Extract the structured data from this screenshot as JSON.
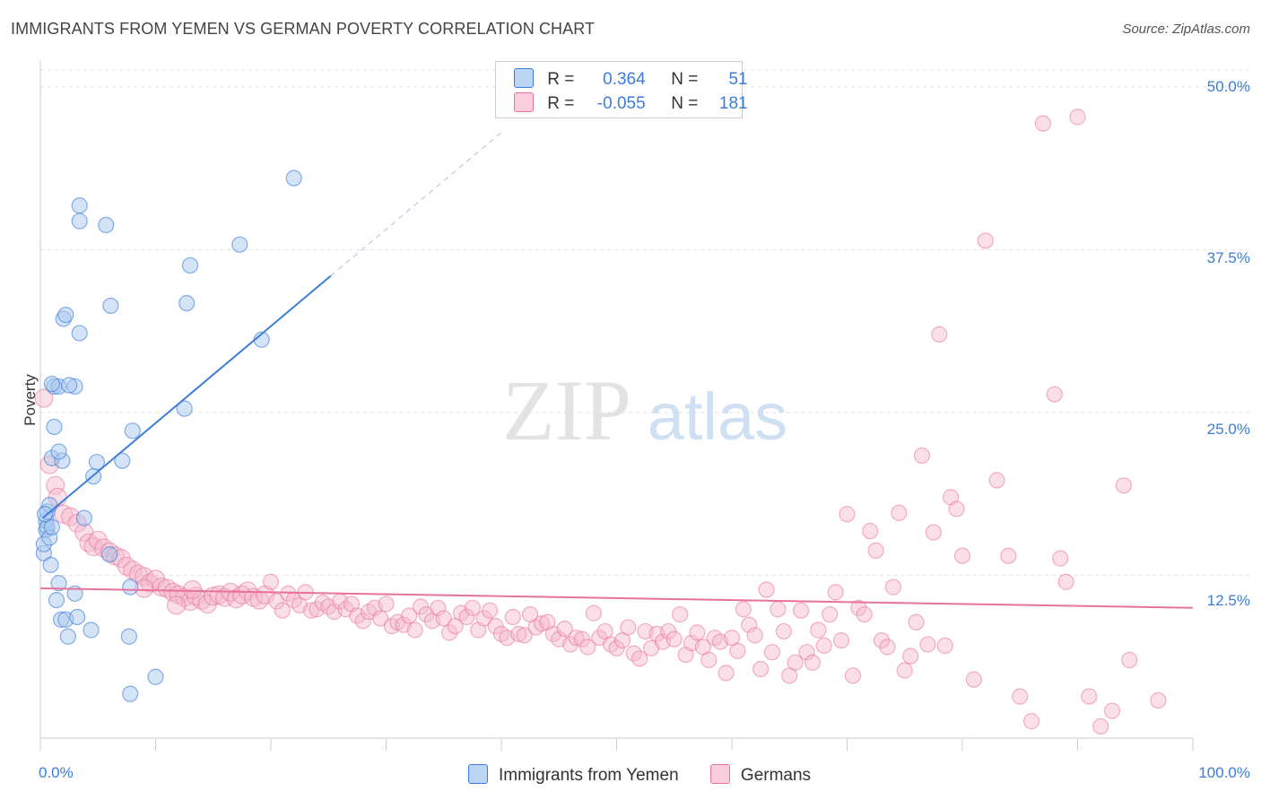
{
  "title": "IMMIGRANTS FROM YEMEN VS GERMAN POVERTY CORRELATION CHART",
  "source": "Source: ZipAtlas.com",
  "watermark": {
    "zip": "ZIP",
    "atlas": "atlas"
  },
  "colors": {
    "blue": "#3b7dd8",
    "pink": "#e8739a",
    "blue_fill": "#a9c8ee",
    "pink_fill": "#f5b8cc"
  },
  "legend_top": {
    "rows": [
      {
        "r_label": "R =",
        "r_value": "0.364",
        "n_label": "N =",
        "n_value": "51"
      },
      {
        "r_label": "R =",
        "r_value": "-0.055",
        "n_label": "N =",
        "n_value": "181"
      }
    ]
  },
  "legend_bottom": [
    {
      "label": "Immigrants from Yemen"
    },
    {
      "label": "Germans"
    }
  ],
  "chart_data": {
    "type": "scatter",
    "title": "IMMIGRANTS FROM YEMEN VS GERMAN POVERTY CORRELATION CHART",
    "xlabel": "",
    "ylabel": "Poverty",
    "xlim": [
      0,
      100
    ],
    "ylim": [
      0,
      50
    ],
    "x_tick_labels": [
      "0.0%",
      "100.0%"
    ],
    "y_tick_labels": [
      "12.5%",
      "25.0%",
      "37.5%",
      "50.0%"
    ],
    "y_ticks": [
      12.5,
      25.0,
      37.5,
      50.0
    ],
    "series": [
      {
        "name": "Immigrants from Yemen",
        "r": 0.364,
        "n": 51,
        "trend": {
          "x0": 0.2,
          "y0": 16.9,
          "x1": 25.2,
          "y1": 35.5,
          "dash_x1": 40.0
        },
        "points": [
          [
            0.3,
            14.2
          ],
          [
            0.3,
            14.9
          ],
          [
            0.5,
            16.0
          ],
          [
            0.5,
            16.7
          ],
          [
            0.6,
            17.4
          ],
          [
            0.6,
            16.2
          ],
          [
            0.8,
            17.9
          ],
          [
            0.8,
            15.4
          ],
          [
            0.9,
            13.3
          ],
          [
            1.0,
            16.2
          ],
          [
            1.0,
            21.5
          ],
          [
            1.2,
            27.0
          ],
          [
            1.2,
            23.9
          ],
          [
            1.4,
            10.6
          ],
          [
            1.6,
            11.9
          ],
          [
            1.6,
            27.0
          ],
          [
            1.8,
            9.1
          ],
          [
            1.9,
            21.3
          ],
          [
            2.0,
            32.2
          ],
          [
            2.2,
            32.5
          ],
          [
            2.2,
            9.1
          ],
          [
            2.4,
            7.8
          ],
          [
            3.0,
            27.0
          ],
          [
            3.0,
            11.1
          ],
          [
            3.2,
            9.3
          ],
          [
            3.4,
            40.9
          ],
          [
            3.4,
            39.7
          ],
          [
            3.4,
            31.1
          ],
          [
            3.8,
            16.9
          ],
          [
            4.4,
            8.3
          ],
          [
            4.6,
            20.1
          ],
          [
            4.9,
            21.2
          ],
          [
            5.7,
            39.4
          ],
          [
            6.0,
            14.1
          ],
          [
            6.1,
            33.2
          ],
          [
            7.1,
            21.3
          ],
          [
            7.7,
            7.8
          ],
          [
            7.8,
            3.4
          ],
          [
            7.8,
            11.6
          ],
          [
            8.0,
            23.6
          ],
          [
            10.0,
            4.7
          ],
          [
            12.5,
            25.3
          ],
          [
            12.7,
            33.4
          ],
          [
            13.0,
            36.3
          ],
          [
            17.3,
            37.9
          ],
          [
            19.2,
            30.6
          ],
          [
            22.0,
            43.0
          ],
          [
            1.0,
            27.2
          ],
          [
            1.6,
            22.0
          ],
          [
            0.4,
            17.2
          ],
          [
            2.5,
            27.1
          ]
        ]
      },
      {
        "name": "Germans",
        "r": -0.055,
        "n": 181,
        "trend": {
          "x0": 0,
          "y0": 11.5,
          "x1": 100,
          "y1": 10.0
        },
        "points": [
          [
            0.3,
            26.1
          ],
          [
            0.8,
            21.0
          ],
          [
            1.3,
            19.4
          ],
          [
            1.5,
            18.5
          ],
          [
            2.0,
            17.2
          ],
          [
            2.6,
            17.0
          ],
          [
            3.2,
            16.5
          ],
          [
            3.8,
            15.8
          ],
          [
            4.2,
            15.0
          ],
          [
            4.6,
            14.7
          ],
          [
            5.0,
            15.2
          ],
          [
            5.5,
            14.6
          ],
          [
            6.0,
            14.3
          ],
          [
            6.5,
            14.0
          ],
          [
            7.0,
            13.8
          ],
          [
            7.5,
            13.2
          ],
          [
            8.0,
            12.9
          ],
          [
            8.5,
            12.6
          ],
          [
            9.0,
            12.4
          ],
          [
            9.5,
            11.9
          ],
          [
            10.0,
            12.2
          ],
          [
            10.5,
            11.6
          ],
          [
            11.0,
            11.5
          ],
          [
            11.5,
            11.2
          ],
          [
            12.0,
            11.0
          ],
          [
            12.5,
            10.8
          ],
          [
            13.0,
            10.5
          ],
          [
            13.5,
            10.9
          ],
          [
            14.0,
            10.6
          ],
          [
            14.5,
            10.3
          ],
          [
            15.0,
            10.9
          ],
          [
            15.5,
            11.0
          ],
          [
            16.0,
            10.8
          ],
          [
            16.5,
            11.2
          ],
          [
            17.0,
            10.7
          ],
          [
            17.5,
            11.0
          ],
          [
            18.0,
            11.3
          ],
          [
            18.5,
            10.8
          ],
          [
            19.0,
            10.6
          ],
          [
            19.5,
            11.0
          ],
          [
            20.0,
            12.0
          ],
          [
            20.5,
            10.5
          ],
          [
            21.0,
            9.8
          ],
          [
            21.5,
            11.1
          ],
          [
            22.0,
            10.6
          ],
          [
            22.5,
            10.2
          ],
          [
            23.0,
            11.2
          ],
          [
            23.5,
            9.8
          ],
          [
            24.0,
            9.9
          ],
          [
            24.5,
            10.4
          ],
          [
            25.0,
            10.1
          ],
          [
            25.5,
            9.7
          ],
          [
            26.0,
            10.5
          ],
          [
            26.5,
            9.9
          ],
          [
            27.0,
            10.3
          ],
          [
            27.5,
            9.4
          ],
          [
            28.0,
            9.0
          ],
          [
            28.5,
            9.7
          ],
          [
            29.0,
            10.0
          ],
          [
            29.5,
            9.2
          ],
          [
            30.0,
            10.3
          ],
          [
            30.5,
            8.6
          ],
          [
            31.0,
            8.9
          ],
          [
            31.5,
            8.7
          ],
          [
            32.0,
            9.4
          ],
          [
            32.5,
            8.3
          ],
          [
            33.0,
            10.1
          ],
          [
            33.5,
            9.5
          ],
          [
            34.0,
            9.0
          ],
          [
            34.5,
            10.0
          ],
          [
            35.0,
            9.2
          ],
          [
            35.5,
            8.1
          ],
          [
            36.0,
            8.6
          ],
          [
            36.5,
            9.6
          ],
          [
            37.0,
            9.3
          ],
          [
            37.5,
            10.0
          ],
          [
            38.0,
            8.3
          ],
          [
            38.5,
            9.2
          ],
          [
            39.0,
            9.8
          ],
          [
            39.5,
            8.6
          ],
          [
            40.0,
            8.0
          ],
          [
            40.5,
            7.7
          ],
          [
            41.0,
            9.3
          ],
          [
            41.5,
            8.0
          ],
          [
            42.0,
            7.9
          ],
          [
            42.5,
            9.5
          ],
          [
            43.0,
            8.5
          ],
          [
            43.5,
            8.8
          ],
          [
            44.0,
            8.9
          ],
          [
            44.5,
            8.0
          ],
          [
            45.0,
            7.6
          ],
          [
            45.5,
            8.4
          ],
          [
            46.0,
            7.2
          ],
          [
            46.5,
            7.7
          ],
          [
            47.0,
            7.6
          ],
          [
            47.5,
            7.0
          ],
          [
            48.0,
            9.6
          ],
          [
            48.5,
            7.7
          ],
          [
            49.0,
            8.2
          ],
          [
            49.5,
            7.2
          ],
          [
            50.0,
            6.9
          ],
          [
            50.5,
            7.5
          ],
          [
            51.0,
            8.5
          ],
          [
            51.5,
            6.5
          ],
          [
            52.0,
            6.1
          ],
          [
            52.5,
            8.2
          ],
          [
            53.0,
            6.9
          ],
          [
            53.5,
            8.0
          ],
          [
            54.0,
            7.4
          ],
          [
            54.5,
            8.2
          ],
          [
            55.0,
            7.6
          ],
          [
            55.5,
            9.5
          ],
          [
            56.0,
            6.4
          ],
          [
            56.5,
            7.3
          ],
          [
            57.0,
            8.1
          ],
          [
            57.5,
            7.0
          ],
          [
            58.0,
            6.0
          ],
          [
            58.5,
            7.7
          ],
          [
            59.0,
            7.4
          ],
          [
            59.5,
            5.0
          ],
          [
            60.0,
            7.7
          ],
          [
            60.5,
            6.7
          ],
          [
            61.0,
            9.9
          ],
          [
            61.5,
            8.7
          ],
          [
            62.0,
            7.9
          ],
          [
            62.5,
            5.3
          ],
          [
            63.0,
            11.4
          ],
          [
            63.5,
            6.6
          ],
          [
            64.0,
            9.9
          ],
          [
            64.5,
            8.2
          ],
          [
            65.0,
            4.8
          ],
          [
            65.5,
            5.8
          ],
          [
            66.0,
            9.8
          ],
          [
            66.5,
            6.6
          ],
          [
            67.0,
            5.8
          ],
          [
            67.5,
            8.3
          ],
          [
            68.0,
            7.1
          ],
          [
            68.5,
            9.5
          ],
          [
            69.0,
            11.2
          ],
          [
            69.5,
            7.5
          ],
          [
            70.0,
            17.2
          ],
          [
            70.5,
            4.8
          ],
          [
            71.0,
            10.0
          ],
          [
            71.5,
            9.5
          ],
          [
            72.0,
            15.9
          ],
          [
            72.5,
            14.4
          ],
          [
            73.0,
            7.5
          ],
          [
            73.5,
            7.0
          ],
          [
            74.0,
            11.6
          ],
          [
            74.5,
            17.3
          ],
          [
            75.0,
            5.2
          ],
          [
            75.5,
            6.3
          ],
          [
            76.0,
            8.9
          ],
          [
            76.5,
            21.7
          ],
          [
            77.0,
            7.2
          ],
          [
            77.5,
            15.8
          ],
          [
            78.0,
            31.0
          ],
          [
            78.5,
            7.1
          ],
          [
            79.0,
            18.5
          ],
          [
            79.5,
            17.6
          ],
          [
            80.0,
            14.0
          ],
          [
            81.0,
            4.5
          ],
          [
            82.0,
            38.2
          ],
          [
            83.0,
            19.8
          ],
          [
            84.0,
            14.0
          ],
          [
            85.0,
            3.2
          ],
          [
            86.0,
            1.3
          ],
          [
            87.0,
            47.2
          ],
          [
            88.0,
            26.4
          ],
          [
            88.5,
            13.8
          ],
          [
            89.0,
            12.0
          ],
          [
            90.0,
            47.7
          ],
          [
            91.0,
            3.2
          ],
          [
            92.0,
            0.9
          ],
          [
            93.0,
            2.1
          ],
          [
            94.0,
            19.4
          ],
          [
            94.5,
            6.0
          ],
          [
            97.0,
            2.9
          ],
          [
            9.0,
            11.5
          ],
          [
            11.8,
            10.2
          ],
          [
            13.2,
            11.4
          ]
        ]
      }
    ]
  }
}
